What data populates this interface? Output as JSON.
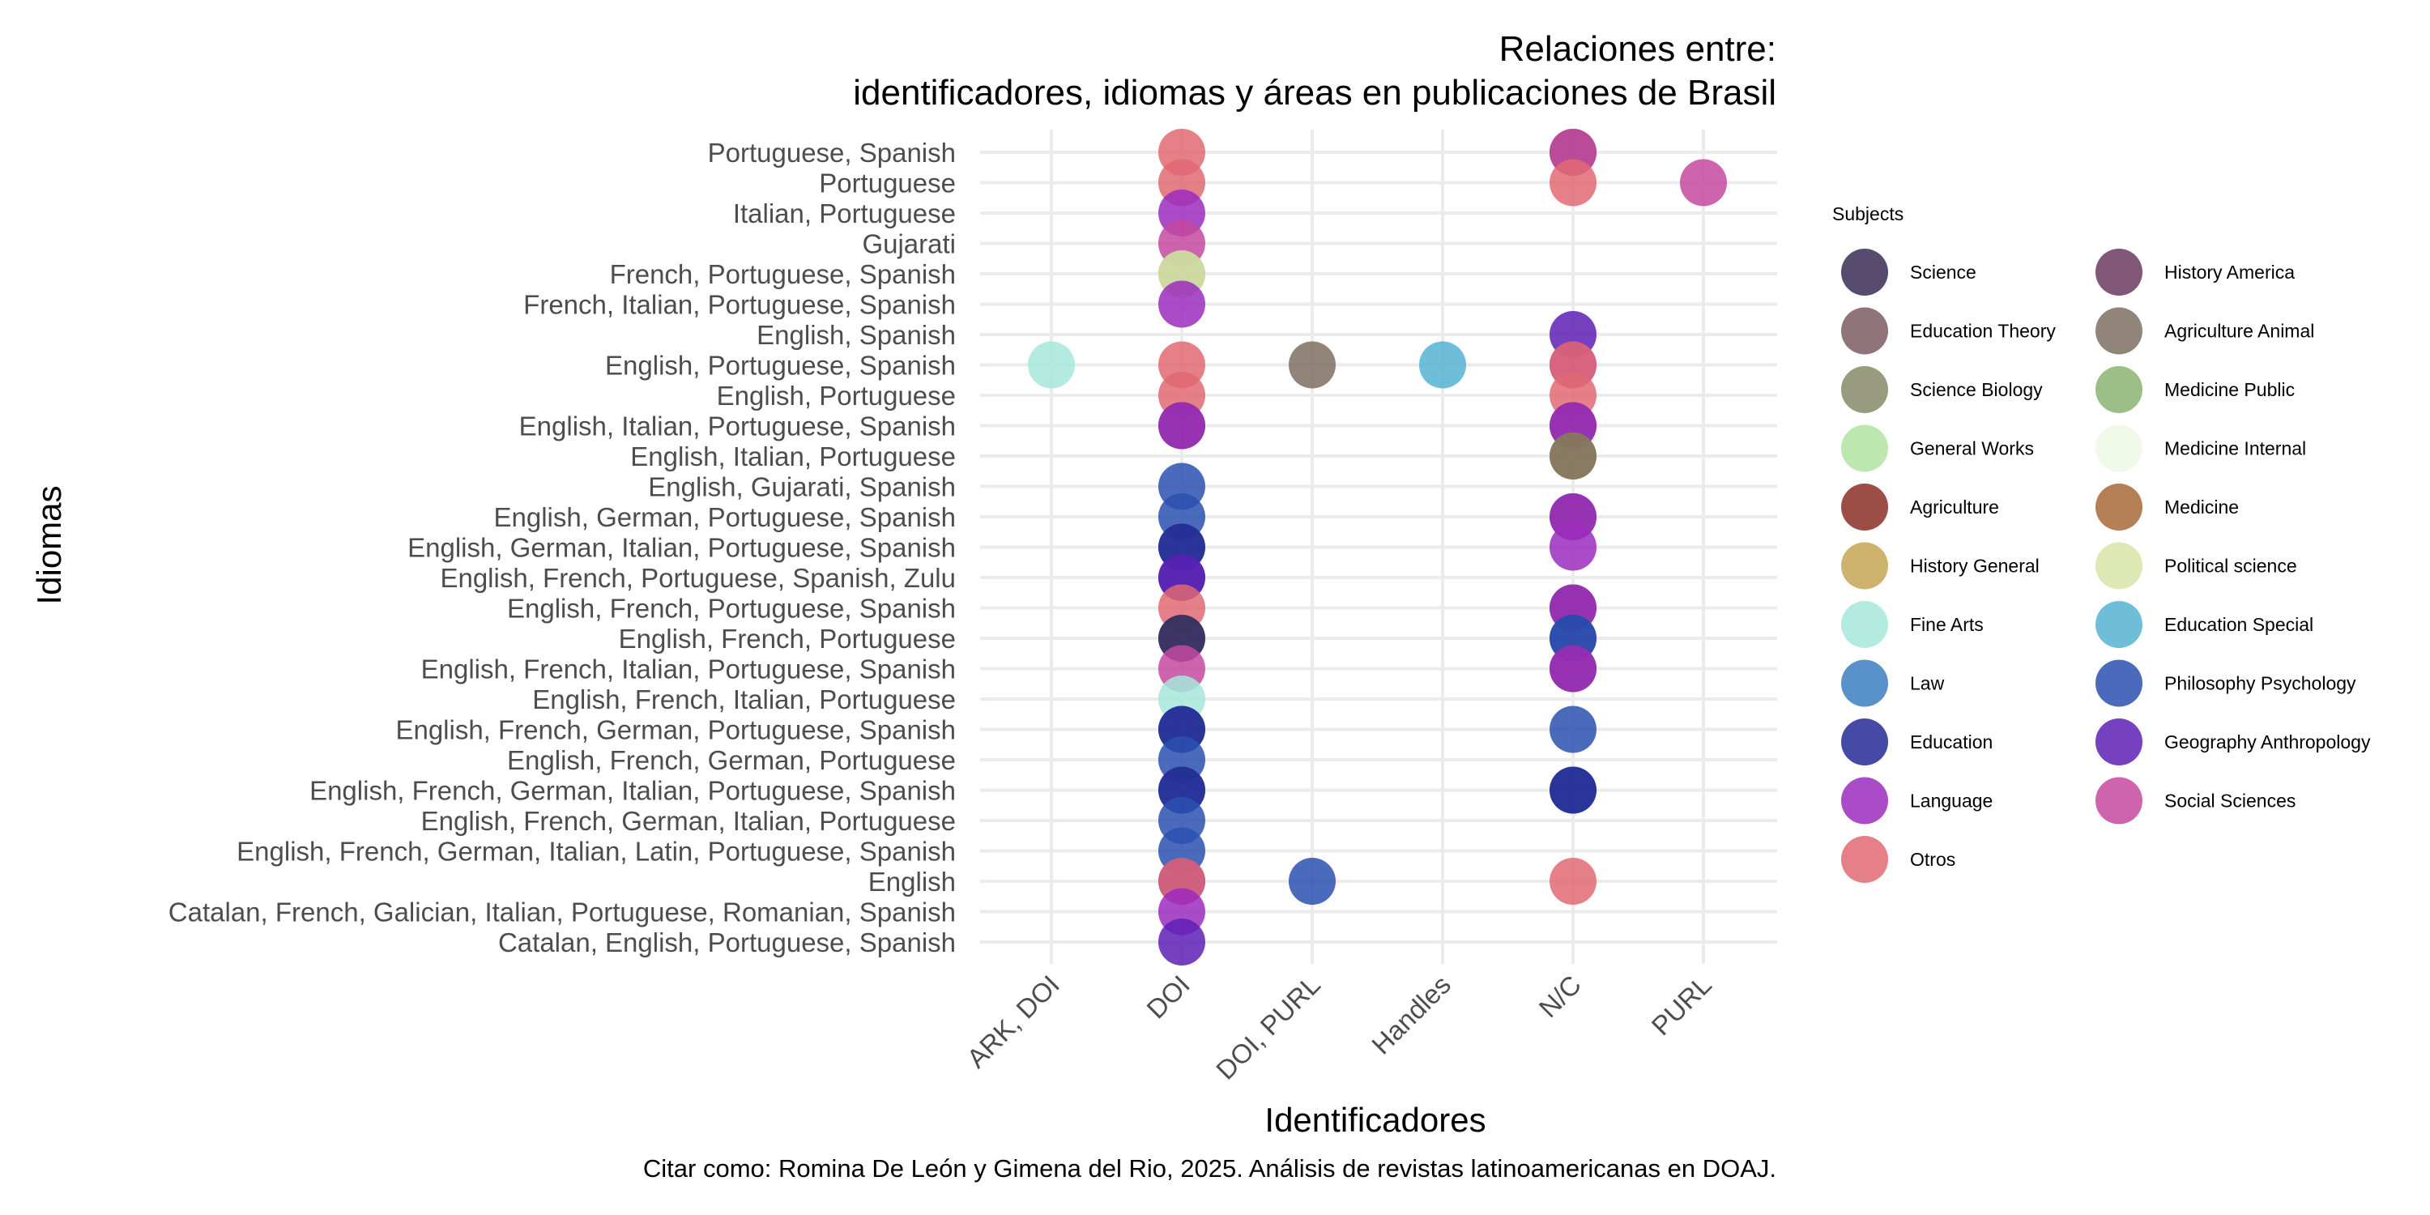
{
  "chart_data": {
    "type": "scatter",
    "title": [
      "Relaciones entre:",
      "identificadores, idiomas y áreas en publicaciones de Brasil"
    ],
    "xlabel": "Identificadores",
    "ylabel": "Idiomas",
    "caption": "Citar como: Romina De León y Gimena del Rio, 2025. Análisis de revistas latinoamericanas en DOAJ.",
    "legend_title": "Subjects",
    "legend_position": "right",
    "grid": true,
    "x_categories": [
      "ARK, DOI",
      "DOI",
      "DOI, PURL",
      "Handles",
      "N/C",
      "PURL"
    ],
    "y_categories": [
      "Catalan, English, Portuguese, Spanish",
      "Catalan, French, Galician, Italian, Portuguese, Romanian, Spanish",
      "English",
      "English, French, German, Italian, Latin, Portuguese, Spanish",
      "English, French, German, Italian, Portuguese",
      "English, French, German, Italian, Portuguese, Spanish",
      "English, French, German, Portuguese",
      "English, French, German, Portuguese, Spanish",
      "English, French, Italian, Portuguese",
      "English, French, Italian, Portuguese, Spanish",
      "English, French, Portuguese",
      "English, French, Portuguese, Spanish",
      "English, French, Portuguese, Spanish, Zulu",
      "English, German, Italian, Portuguese, Spanish",
      "English, German, Portuguese, Spanish",
      "English, Gujarati, Spanish",
      "English, Italian, Portuguese",
      "English, Italian, Portuguese, Spanish",
      "English, Portuguese",
      "English, Portuguese, Spanish",
      "English, Spanish",
      "French, Italian, Portuguese, Spanish",
      "French, Portuguese, Spanish",
      "Gujarati",
      "Italian, Portuguese",
      "Portuguese",
      "Portuguese, Spanish"
    ],
    "subjects": [
      {
        "name": "Science",
        "color": "#3b2d55"
      },
      {
        "name": "History America",
        "color": "#6b3a5f"
      },
      {
        "name": "Education Theory",
        "color": "#7e5c62"
      },
      {
        "name": "Agriculture Animal",
        "color": "#7d7060"
      },
      {
        "name": "Science Biology",
        "color": "#868a67"
      },
      {
        "name": "Medicine Public",
        "color": "#8bb473"
      },
      {
        "name": "General Works",
        "color": "#b0e4a2"
      },
      {
        "name": "Medicine Internal",
        "color": "#eef8e5"
      },
      {
        "name": "Agriculture",
        "color": "#8b2e24"
      },
      {
        "name": "Medicine",
        "color": "#a86a38"
      },
      {
        "name": "History General",
        "color": "#c6a656"
      },
      {
        "name": "Political science",
        "color": "#d8e4a8"
      },
      {
        "name": "Fine Arts",
        "color": "#a6e8dc"
      },
      {
        "name": "Education Special",
        "color": "#55b3d4"
      },
      {
        "name": "Law",
        "color": "#3c7ec2"
      },
      {
        "name": "Philosophy Psychology",
        "color": "#2a50af"
      },
      {
        "name": "Education",
        "color": "#242b94"
      },
      {
        "name": "Geography Anthropology",
        "color": "#5e20b5"
      },
      {
        "name": "Language",
        "color": "#9b2bbd"
      },
      {
        "name": "Social Sciences",
        "color": "#c4499f"
      },
      {
        "name": "Otros",
        "color": "#e06973"
      }
    ],
    "points": [
      {
        "x": "DOI",
        "y": "Portuguese, Spanish",
        "subject": "Otros"
      },
      {
        "x": "N/C",
        "y": "Portuguese, Spanish",
        "subject": "History America"
      },
      {
        "x": "N/C",
        "y": "Portuguese, Spanish",
        "subject": "Social Sciences"
      },
      {
        "x": "DOI",
        "y": "Portuguese",
        "subject": "Otros"
      },
      {
        "x": "N/C",
        "y": "Portuguese",
        "subject": "Otros"
      },
      {
        "x": "PURL",
        "y": "Portuguese",
        "subject": "Social Sciences"
      },
      {
        "x": "DOI",
        "y": "Italian, Portuguese",
        "subject": "Language"
      },
      {
        "x": "DOI",
        "y": "Gujarati",
        "subject": "Social Sciences"
      },
      {
        "x": "DOI",
        "y": "French, Portuguese, Spanish",
        "subject": "Science Biology"
      },
      {
        "x": "DOI",
        "y": "French, Portuguese, Spanish",
        "subject": "Political science"
      },
      {
        "x": "DOI",
        "y": "French, Italian, Portuguese, Spanish",
        "subject": "Language"
      },
      {
        "x": "N/C",
        "y": "English, Spanish",
        "subject": "Geography Anthropology"
      },
      {
        "x": "ARK, DOI",
        "y": "English, Portuguese, Spanish",
        "subject": "Fine Arts"
      },
      {
        "x": "DOI",
        "y": "English, Portuguese, Spanish",
        "subject": "Otros"
      },
      {
        "x": "DOI, PURL",
        "y": "English, Portuguese, Spanish",
        "subject": "Agriculture Animal"
      },
      {
        "x": "Handles",
        "y": "English, Portuguese, Spanish",
        "subject": "Education Special"
      },
      {
        "x": "N/C",
        "y": "English, Portuguese, Spanish",
        "subject": "Language"
      },
      {
        "x": "N/C",
        "y": "English, Portuguese, Spanish",
        "subject": "Otros"
      },
      {
        "x": "DOI",
        "y": "English, Portuguese",
        "subject": "Otros"
      },
      {
        "x": "N/C",
        "y": "English, Portuguese",
        "subject": "Otros"
      },
      {
        "x": "DOI",
        "y": "English, Italian, Portuguese, Spanish",
        "subject": "History America"
      },
      {
        "x": "DOI",
        "y": "English, Italian, Portuguese, Spanish",
        "subject": "Language"
      },
      {
        "x": "N/C",
        "y": "English, Italian, Portuguese, Spanish",
        "subject": "History America"
      },
      {
        "x": "N/C",
        "y": "English, Italian, Portuguese, Spanish",
        "subject": "Language"
      },
      {
        "x": "N/C",
        "y": "English, Italian, Portuguese",
        "subject": "History General"
      },
      {
        "x": "N/C",
        "y": "English, Italian, Portuguese",
        "subject": "Agriculture Animal"
      },
      {
        "x": "DOI",
        "y": "English, Gujarati, Spanish",
        "subject": "Philosophy Psychology"
      },
      {
        "x": "DOI",
        "y": "English, German, Portuguese, Spanish",
        "subject": "Philosophy Psychology"
      },
      {
        "x": "N/C",
        "y": "English, German, Portuguese, Spanish",
        "subject": "History America"
      },
      {
        "x": "N/C",
        "y": "English, German, Portuguese, Spanish",
        "subject": "Language"
      },
      {
        "x": "DOI",
        "y": "English, German, Italian, Portuguese, Spanish",
        "subject": "Philosophy Psychology"
      },
      {
        "x": "DOI",
        "y": "English, German, Italian, Portuguese, Spanish",
        "subject": "Education"
      },
      {
        "x": "N/C",
        "y": "English, German, Italian, Portuguese, Spanish",
        "subject": "Language"
      },
      {
        "x": "DOI",
        "y": "English, French, Portuguese, Spanish, Zulu",
        "subject": "Education"
      },
      {
        "x": "DOI",
        "y": "English, French, Portuguese, Spanish, Zulu",
        "subject": "Geography Anthropology"
      },
      {
        "x": "DOI",
        "y": "English, French, Portuguese, Spanish",
        "subject": "Otros"
      },
      {
        "x": "N/C",
        "y": "English, French, Portuguese, Spanish",
        "subject": "History America"
      },
      {
        "x": "N/C",
        "y": "English, French, Portuguese, Spanish",
        "subject": "Language"
      },
      {
        "x": "DOI",
        "y": "English, French, Portuguese",
        "subject": "Philosophy Psychology"
      },
      {
        "x": "DOI",
        "y": "English, French, Portuguese",
        "subject": "Science"
      },
      {
        "x": "N/C",
        "y": "English, French, Portuguese",
        "subject": "Education"
      },
      {
        "x": "N/C",
        "y": "English, French, Portuguese",
        "subject": "Philosophy Psychology"
      },
      {
        "x": "DOI",
        "y": "English, French, Italian, Portuguese, Spanish",
        "subject": "Social Sciences"
      },
      {
        "x": "N/C",
        "y": "English, French, Italian, Portuguese, Spanish",
        "subject": "History America"
      },
      {
        "x": "N/C",
        "y": "English, French, Italian, Portuguese, Spanish",
        "subject": "Language"
      },
      {
        "x": "DOI",
        "y": "English, French, Italian, Portuguese",
        "subject": "Fine Arts"
      },
      {
        "x": "DOI",
        "y": "English, French, German, Portuguese, Spanish",
        "subject": "Philosophy Psychology"
      },
      {
        "x": "DOI",
        "y": "English, French, German, Portuguese, Spanish",
        "subject": "Education"
      },
      {
        "x": "N/C",
        "y": "English, French, German, Portuguese, Spanish",
        "subject": "Philosophy Psychology"
      },
      {
        "x": "DOI",
        "y": "English, French, German, Portuguese",
        "subject": "Philosophy Psychology"
      },
      {
        "x": "DOI",
        "y": "English, French, German, Italian, Portuguese, Spanish",
        "subject": "Philosophy Psychology"
      },
      {
        "x": "DOI",
        "y": "English, French, German, Italian, Portuguese, Spanish",
        "subject": "Education"
      },
      {
        "x": "N/C",
        "y": "English, French, German, Italian, Portuguese, Spanish",
        "subject": "Philosophy Psychology"
      },
      {
        "x": "N/C",
        "y": "English, French, German, Italian, Portuguese, Spanish",
        "subject": "Education"
      },
      {
        "x": "DOI",
        "y": "English, French, German, Italian, Portuguese",
        "subject": "Philosophy Psychology"
      },
      {
        "x": "DOI",
        "y": "English, French, German, Italian, Latin, Portuguese, Spanish",
        "subject": "Philosophy Psychology"
      },
      {
        "x": "DOI",
        "y": "English",
        "subject": "Geography Anthropology"
      },
      {
        "x": "DOI",
        "y": "English",
        "subject": "Otros"
      },
      {
        "x": "DOI, PURL",
        "y": "English",
        "subject": "Philosophy Psychology"
      },
      {
        "x": "N/C",
        "y": "English",
        "subject": "Otros"
      },
      {
        "x": "DOI",
        "y": "Catalan, French, Galician, Italian, Portuguese, Romanian, Spanish",
        "subject": "Language"
      },
      {
        "x": "DOI",
        "y": "Catalan, English, Portuguese, Spanish",
        "subject": "Geography Anthropology"
      }
    ]
  }
}
